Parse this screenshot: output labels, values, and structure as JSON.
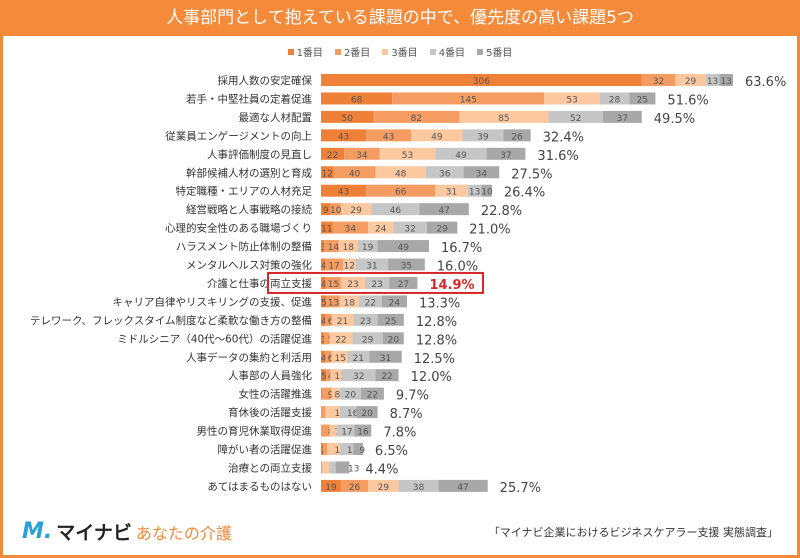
{
  "title": "人事部門として抱えている課題の中で、優先度の高い課題5つ",
  "footer": {
    "logo_main": "マイナビ",
    "logo_sub": "あなたの介護",
    "source": "「マイナビ企業におけるビジネスケアラー支援 実態調査」"
  },
  "chart_data": {
    "type": "bar",
    "orientation": "horizontal",
    "stacked": true,
    "title": "人事部門として抱えている課題の中で、優先度の高い課題5つ",
    "legend_position": "top",
    "grid": false,
    "series_colors": [
      "#ef8038",
      "#f49c62",
      "#fbc8a0",
      "#c6c6c6",
      "#a9a8a8"
    ],
    "highlight_color": "#d7262b",
    "highlight_category": "介護と仕事の両立支援",
    "categories": [
      "採用人数の安定確保",
      "若手・中堅社員の定着促進",
      "最適な人材配置",
      "従業員エンゲージメントの向上",
      "人事評価制度の見直し",
      "幹部候補人材の選別と育成",
      "特定職種・エリアの人材充足",
      "経営戦略と人事戦略の接続",
      "心理的安全性のある職場づくり",
      "ハラスメント防止体制の整備",
      "メンタルヘルス対策の強化",
      "介護と仕事の両立支援",
      "キャリア自律やリスキリングの支援、促進",
      "テレワーク、フレックスタイム制度など柔軟な働き方の整備",
      "ミドルシニア（40代〜60代）の活躍促進",
      "人事データの集約と利活用",
      "人事部の人員強化",
      "女性の活躍推進",
      "育休後の活躍支援",
      "男性の育児休業取得促進",
      "障がい者の活躍促進",
      "治療との両立支援",
      "あてはまるものはない"
    ],
    "series": [
      {
        "name": "1番目",
        "values": [
          306,
          68,
          50,
          43,
          22,
          12,
          43,
          9,
          11,
          3,
          4,
          4,
          5,
          4,
          3,
          4,
          5,
          1,
          0,
          0,
          2,
          0,
          19
        ]
      },
      {
        "name": "2番目",
        "values": [
          32,
          145,
          82,
          43,
          34,
          40,
          66,
          10,
          34,
          14,
          17,
          15,
          13,
          6,
          5,
          6,
          4,
          9,
          4,
          8,
          4,
          1,
          26
        ]
      },
      {
        "name": "3番目",
        "values": [
          29,
          53,
          85,
          49,
          53,
          48,
          31,
          29,
          24,
          18,
          12,
          23,
          18,
          21,
          22,
          15,
          11,
          8,
          14,
          7,
          12,
          7,
          29
        ]
      },
      {
        "name": "4番目",
        "values": [
          13,
          28,
          52,
          39,
          49,
          36,
          13,
          46,
          32,
          19,
          31,
          23,
          22,
          23,
          29,
          21,
          32,
          20,
          16,
          17,
          13,
          6,
          38
        ]
      },
      {
        "name": "5番目",
        "values": [
          13,
          25,
          37,
          26,
          37,
          34,
          10,
          47,
          29,
          49,
          35,
          27,
          24,
          25,
          20,
          31,
          22,
          22,
          20,
          16,
          9,
          13,
          47
        ]
      }
    ],
    "totals_pct": [
      "63.6%",
      "51.6%",
      "49.5%",
      "32.4%",
      "31.6%",
      "27.5%",
      "26.4%",
      "22.8%",
      "21.0%",
      "16.7%",
      "16.0%",
      "14.9%",
      "13.3%",
      "12.8%",
      "12.8%",
      "12.5%",
      "12.0%",
      "9.7%",
      "8.7%",
      "7.8%",
      "6.5%",
      "4.4%",
      "25.7%"
    ]
  }
}
